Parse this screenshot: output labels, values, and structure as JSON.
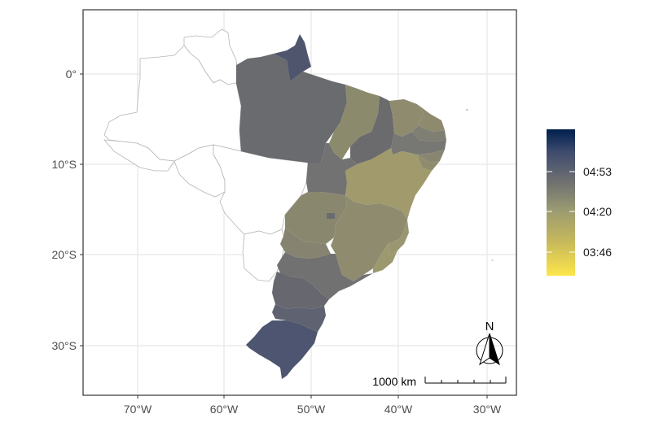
{
  "chart_data": {
    "type": "choropleth",
    "x_ticks": [
      "70°W",
      "60°W",
      "50°W",
      "40°W",
      "30°W"
    ],
    "y_ticks": [
      "0°",
      "10°S",
      "20°S",
      "30°S"
    ],
    "grid": true,
    "legend": {
      "placement": "right",
      "labels": [
        "04:53",
        "04:20",
        "03:46"
      ],
      "color_low": "#FDE64B",
      "color_mid": "#9A9A72",
      "color_high": "#00204D"
    },
    "regions": [
      {
        "id": "para",
        "color": "#6a6b6e"
      },
      {
        "id": "amapa",
        "color": "#4f556d"
      },
      {
        "id": "maranhao",
        "color": "#8c8a6c"
      },
      {
        "id": "piaui",
        "color": "#6b6b6e"
      },
      {
        "id": "ceara",
        "color": "#8e8b6f"
      },
      {
        "id": "rio-grande-do-norte",
        "color": "#8d8a6e"
      },
      {
        "id": "paraiba",
        "color": "#7f7f73"
      },
      {
        "id": "pernambuco",
        "color": "#777773"
      },
      {
        "id": "alagoas",
        "color": "#888670"
      },
      {
        "id": "sergipe",
        "color": "#8f8c6d"
      },
      {
        "id": "bahia",
        "color": "#a09a6d"
      },
      {
        "id": "tocantins",
        "color": "#727272"
      },
      {
        "id": "goias",
        "color": "#8a876f"
      },
      {
        "id": "distrito-federal",
        "color": "#6a6b6e"
      },
      {
        "id": "minas-gerais",
        "color": "#8e8b6f"
      },
      {
        "id": "espirito-santo",
        "color": "#9a9670"
      },
      {
        "id": "rio-de-janeiro",
        "color": "#9d996e"
      },
      {
        "id": "mato-grosso-do-sul",
        "color": "#868470"
      },
      {
        "id": "sao-paulo",
        "color": "#717171"
      },
      {
        "id": "parana",
        "color": "#67686f"
      },
      {
        "id": "santa-catarina",
        "color": "#5f6270"
      },
      {
        "id": "rio-grande-do-sul",
        "color": "#4e5570"
      },
      {
        "id": "amazonas",
        "color": "#ffffff"
      },
      {
        "id": "roraima",
        "color": "#ffffff"
      },
      {
        "id": "acre",
        "color": "#ffffff"
      },
      {
        "id": "rondonia",
        "color": "#ffffff"
      },
      {
        "id": "mato-grosso",
        "color": "#ffffff"
      }
    ]
  },
  "scale_bar": {
    "label": "1000 km"
  },
  "north_arrow": {
    "label": "N"
  }
}
